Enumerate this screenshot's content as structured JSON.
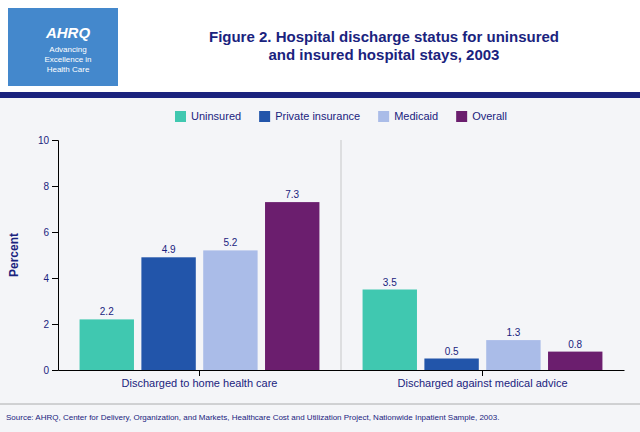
{
  "chart_data": {
    "type": "bar",
    "title": "Figure 2. Hospital discharge status for uninsured\nand insured hospital stays, 2003",
    "y_label": "Percent",
    "annotations": [
      "AHRQ",
      "Advancing\nExcellence in\nHealth Care",
      "Source: AHRQ, Center for Delivery, Organization, and Markets, Healthcare Cost and Utilization Project, Nationwide Inpatient Sample, 2003."
    ],
    "categories": [
      "Discharged to home health care",
      "Discharged against medical advice"
    ],
    "series": [
      {
        "name": "Uninsured",
        "color": "#40C8B0",
        "values": [
          2.2,
          3.5
        ]
      },
      {
        "name": "Private insurance",
        "color": "#2255AA",
        "values": [
          4.9,
          0.5
        ]
      },
      {
        "name": "Medicaid",
        "color": "#AABCE8",
        "values": [
          5.2,
          1.3
        ]
      },
      {
        "name": "Overall",
        "color": "#6B1E6E",
        "values": [
          7.3,
          0.8
        ]
      }
    ],
    "ylim": [
      0,
      10
    ],
    "yticks": [
      0,
      2,
      4,
      6,
      8,
      10
    ],
    "grid": false,
    "legend": "top",
    "data_labels": true
  }
}
